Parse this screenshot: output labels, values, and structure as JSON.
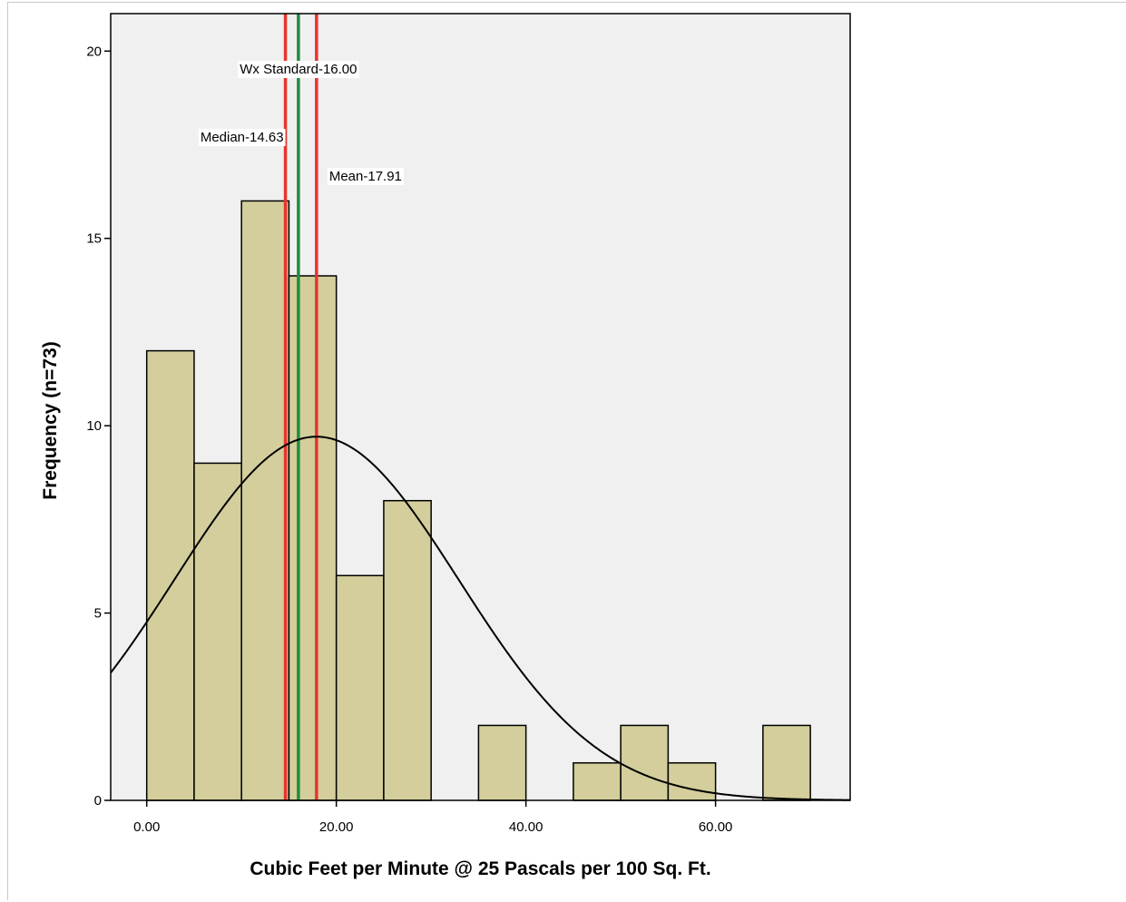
{
  "chart_data": {
    "type": "bar",
    "subtype": "histogram",
    "xlabel": "Cubic Feet per Minute @ 25 Pascals per 100 Sq. Ft.",
    "ylabel": "Frequency (n=73)",
    "xlim": [
      -3.8,
      74.2
    ],
    "ylim": [
      0,
      21
    ],
    "x_ticks": [
      0,
      20,
      40,
      60
    ],
    "x_tick_labels": [
      "0.00",
      "20.00",
      "40.00",
      "60.00"
    ],
    "y_ticks": [
      0,
      5,
      10,
      15,
      20
    ],
    "y_tick_labels": [
      "0",
      "5",
      "10",
      "15",
      "20"
    ],
    "bin_width": 5,
    "bins": [
      {
        "start": 0,
        "end": 5,
        "count": 12
      },
      {
        "start": 5,
        "end": 10,
        "count": 9
      },
      {
        "start": 10,
        "end": 15,
        "count": 16
      },
      {
        "start": 15,
        "end": 20,
        "count": 14
      },
      {
        "start": 20,
        "end": 25,
        "count": 6
      },
      {
        "start": 25,
        "end": 30,
        "count": 8
      },
      {
        "start": 35,
        "end": 40,
        "count": 2
      },
      {
        "start": 45,
        "end": 50,
        "count": 1
      },
      {
        "start": 50,
        "end": 55,
        "count": 2
      },
      {
        "start": 55,
        "end": 60,
        "count": 1
      },
      {
        "start": 65,
        "end": 70,
        "count": 2
      }
    ],
    "normal_curve": {
      "mean": 17.91,
      "sd": 15.0,
      "n": 73
    },
    "reference_lines": [
      {
        "x": 14.63,
        "label": "Median-14.63",
        "color": "#e8342d"
      },
      {
        "x": 16.0,
        "label": "Wx Standard-16.00",
        "color": "#1f8e3c"
      },
      {
        "x": 17.91,
        "label": "Mean-17.91",
        "color": "#e8342d"
      }
    ],
    "colors": {
      "bar_fill": "#d3ce9b",
      "bar_stroke": "#000000",
      "plot_background": "#f0f0f0",
      "curve": "#000000"
    },
    "grid": false
  }
}
